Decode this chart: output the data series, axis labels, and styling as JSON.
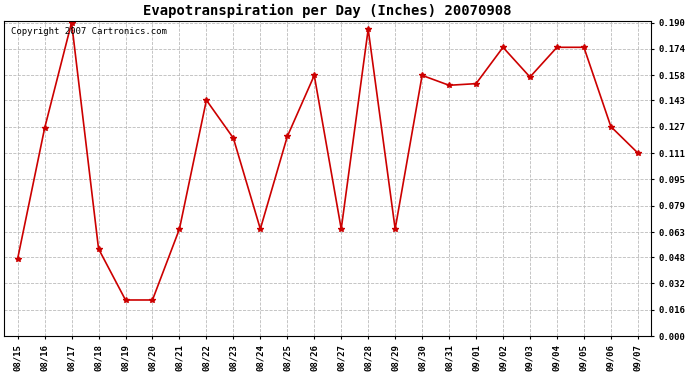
{
  "title": "Evapotranspiration per Day (Inches) 20070908",
  "copyright_text": "Copyright 2007 Cartronics.com",
  "x_labels": [
    "08/15",
    "08/16",
    "08/17",
    "08/18",
    "08/19",
    "08/20",
    "08/21",
    "08/22",
    "08/23",
    "08/24",
    "08/25",
    "08/26",
    "08/27",
    "08/28",
    "08/29",
    "08/30",
    "08/31",
    "09/01",
    "09/02",
    "09/03",
    "09/04",
    "09/05",
    "09/06",
    "09/07"
  ],
  "y_values": [
    0.047,
    0.126,
    0.19,
    0.053,
    0.022,
    0.022,
    0.065,
    0.143,
    0.12,
    0.065,
    0.121,
    0.158,
    0.065,
    0.186,
    0.065,
    0.158,
    0.152,
    0.153,
    0.175,
    0.157,
    0.175,
    0.175,
    0.127,
    0.111
  ],
  "line_color": "#cc0000",
  "marker": "*",
  "marker_size": 4,
  "bg_color": "#ffffff",
  "grid_color": "#bbbbbb",
  "ylim": [
    0.0,
    0.19
  ],
  "yticks": [
    0.0,
    0.016,
    0.032,
    0.048,
    0.063,
    0.079,
    0.095,
    0.111,
    0.127,
    0.143,
    0.158,
    0.174,
    0.19
  ],
  "title_fontsize": 10,
  "tick_fontsize": 6.5,
  "copyright_fontsize": 6.5
}
